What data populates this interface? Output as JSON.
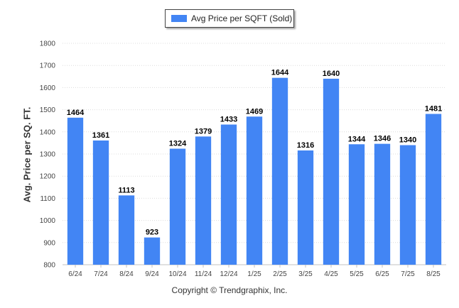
{
  "chart_data": {
    "type": "bar",
    "categories": [
      "6/24",
      "7/24",
      "8/24",
      "9/24",
      "10/24",
      "11/24",
      "12/24",
      "1/25",
      "2/25",
      "3/25",
      "4/25",
      "5/25",
      "6/25",
      "7/25",
      "8/25"
    ],
    "series": [
      {
        "name": "Avg Price per SQFT (Sold)",
        "values": [
          1464,
          1361,
          1113,
          923,
          1324,
          1379,
          1433,
          1469,
          1644,
          1316,
          1640,
          1344,
          1346,
          1340,
          1481
        ]
      }
    ],
    "ylabel": "Avg. Price per SQ. FT.",
    "xlabel": "",
    "ylim": [
      800,
      1800
    ],
    "yticks": [
      800,
      900,
      1000,
      1100,
      1200,
      1300,
      1400,
      1500,
      1600,
      1700,
      1800
    ],
    "grid": true,
    "legend_position": "top-center",
    "bar_color": "#4285F4"
  },
  "footer": {
    "credit": "Copyright © Trendgraphix, Inc."
  }
}
